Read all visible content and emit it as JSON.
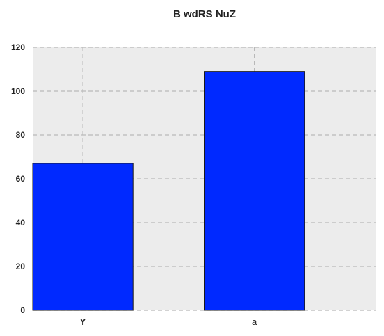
{
  "chart_data": {
    "type": "bar",
    "title": "B wdRS NuZ",
    "categories": [
      "Y",
      "a"
    ],
    "values": [
      67,
      109
    ],
    "xlabel": "",
    "ylabel": "",
    "ylim": [
      0,
      120
    ],
    "yticks": [
      "0",
      "20",
      "40",
      "60",
      "80",
      "100",
      "120"
    ],
    "grid": true,
    "bar_color": "#0029ff",
    "background_color": "#ececec",
    "grid_color": "#b8b8b8"
  }
}
